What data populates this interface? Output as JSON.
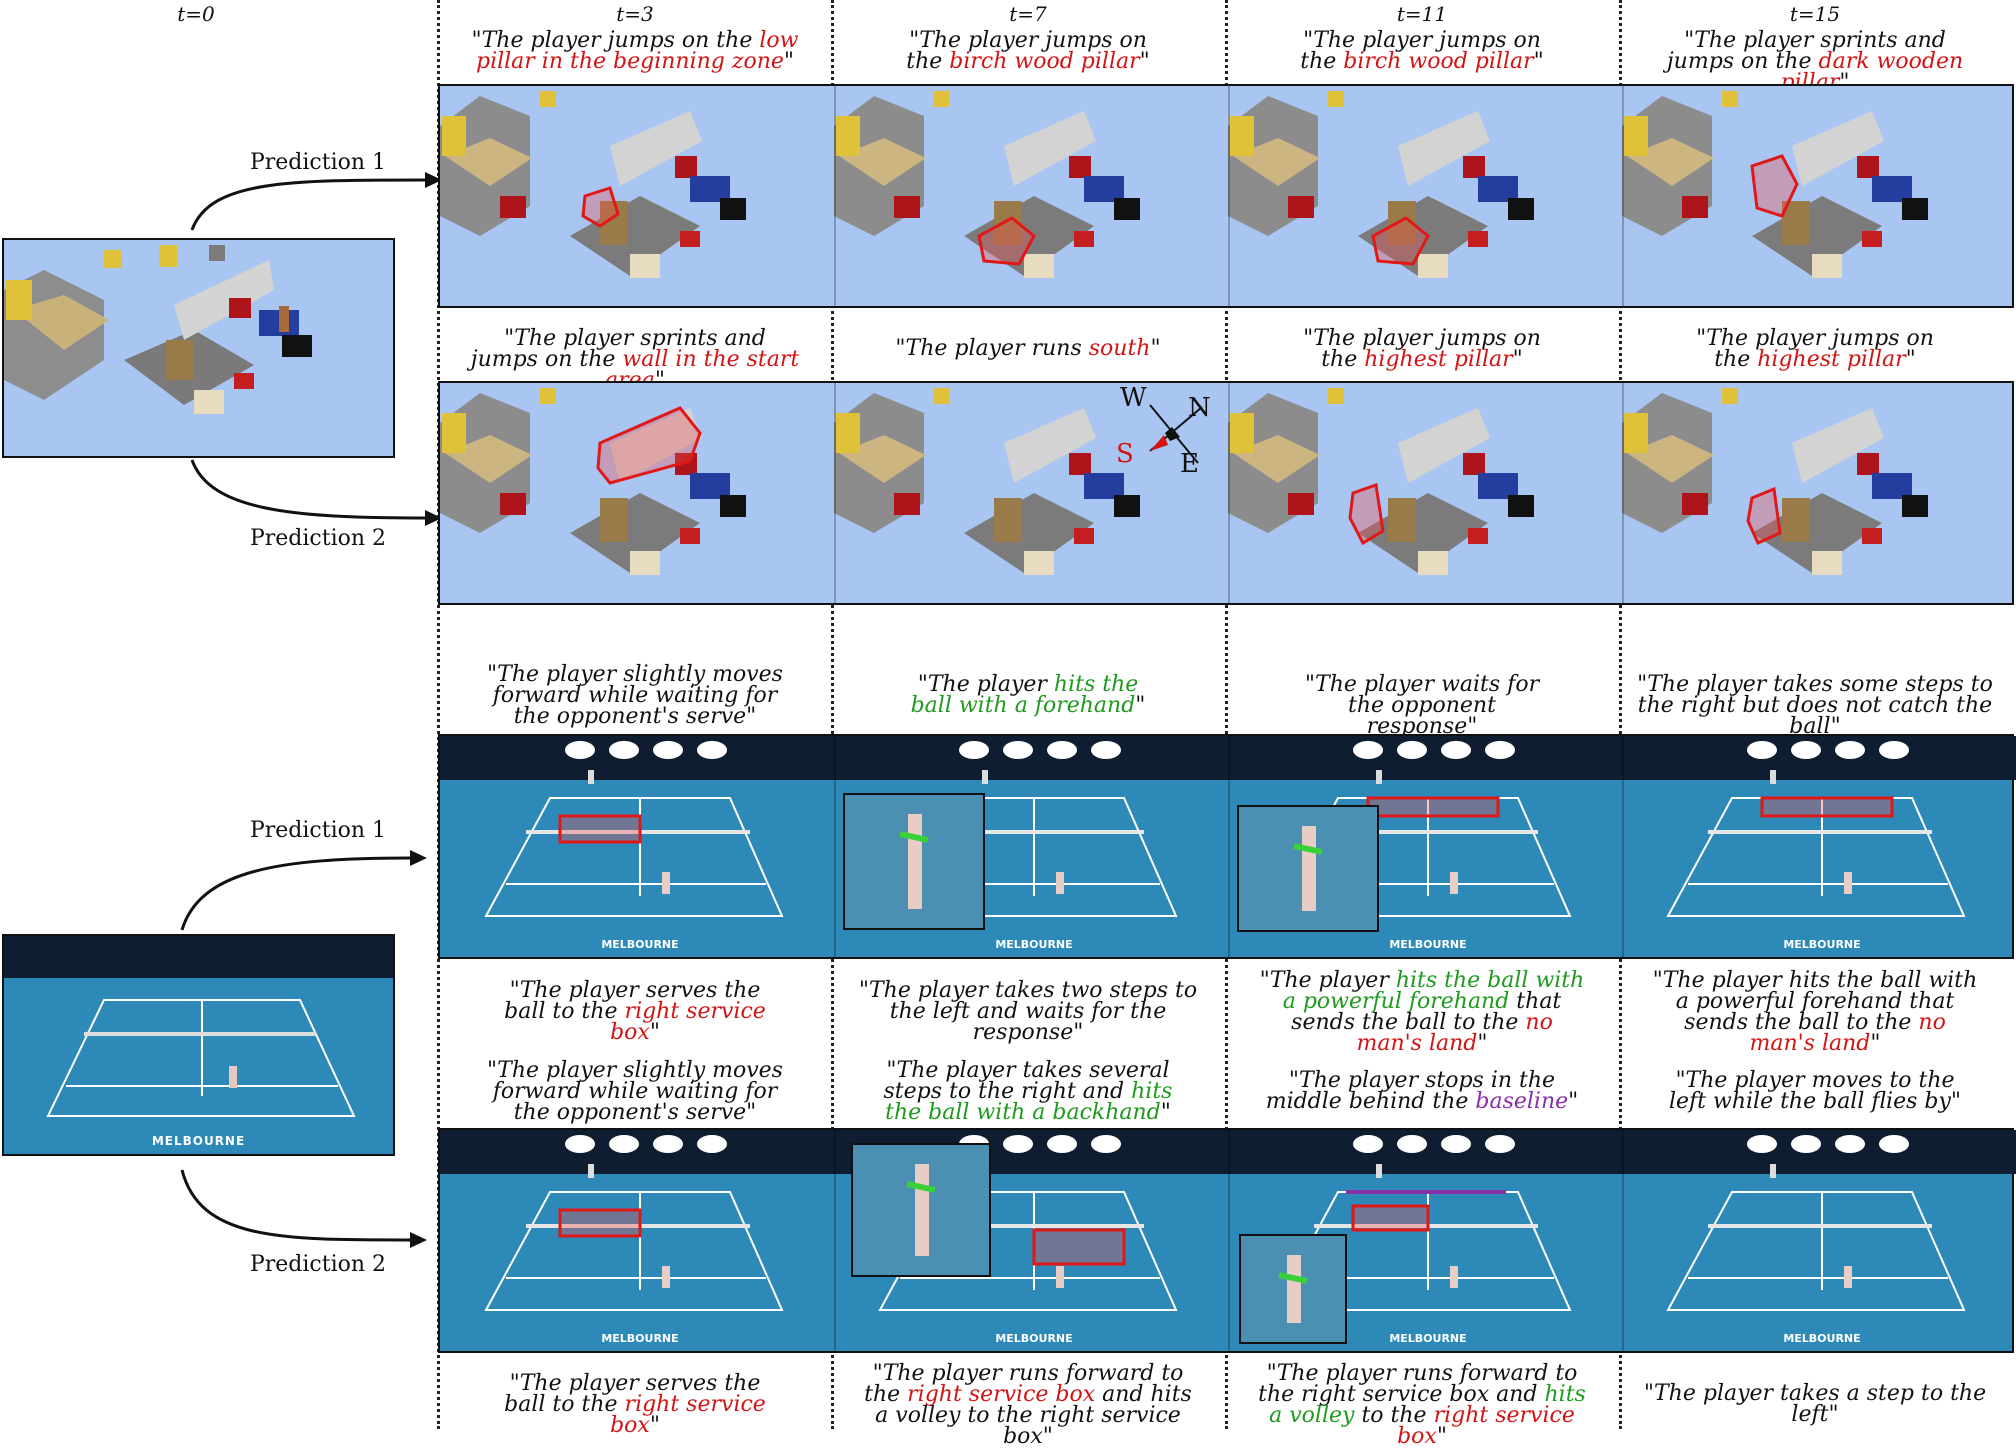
{
  "time_labels": [
    "t=0",
    "t=3",
    "t=7",
    "t=11",
    "t=15"
  ],
  "prediction_labels": {
    "p1": "Prediction 1",
    "p2": "Prediction 2"
  },
  "compass": {
    "w": "W",
    "n": "N",
    "s": "S",
    "e": "E"
  },
  "court_logo": "MELBOURNE",
  "minecraft": {
    "p1_captions": [
      [
        {
          "t": "\"The player jumps on the "
        },
        {
          "t": "low pillar in the beginning zone",
          "c": "red"
        },
        {
          "t": "\""
        }
      ],
      [
        {
          "t": "\"The player jumps on the "
        },
        {
          "t": "birch wood pillar",
          "c": "red"
        },
        {
          "t": "\""
        }
      ],
      [
        {
          "t": "\"The player jumps on the "
        },
        {
          "t": "birch wood pillar",
          "c": "red"
        },
        {
          "t": "\""
        }
      ],
      [
        {
          "t": "\"The player sprints and jumps on the "
        },
        {
          "t": "dark wooden pillar",
          "c": "red"
        },
        {
          "t": "\""
        }
      ]
    ],
    "p2_captions": [
      [
        {
          "t": "\"The player sprints and jumps on the "
        },
        {
          "t": "wall in the start area",
          "c": "red"
        },
        {
          "t": "\""
        }
      ],
      [
        {
          "t": "\"The player runs "
        },
        {
          "t": "south",
          "c": "red"
        },
        {
          "t": "\""
        }
      ],
      [
        {
          "t": "\"The player jumps on the "
        },
        {
          "t": "highest pillar",
          "c": "red"
        },
        {
          "t": "\""
        }
      ],
      [
        {
          "t": "\"The player jumps on the "
        },
        {
          "t": "highest pillar",
          "c": "red"
        },
        {
          "t": "\""
        }
      ]
    ]
  },
  "tennis": {
    "p1_captions_top": [
      [
        {
          "t": "\"The player slightly moves forward while waiting for the opponent's serve\""
        }
      ],
      [
        {
          "t": "\"The player "
        },
        {
          "t": "hits the ball with a forehand",
          "c": "green"
        },
        {
          "t": "\""
        }
      ],
      [
        {
          "t": "\"The player waits for the opponent response\""
        }
      ],
      [
        {
          "t": "\"The player takes some steps to the right but does not catch the ball\""
        }
      ]
    ],
    "p1_captions_bottom": [
      [
        {
          "t": "\"The player serves the ball to the "
        },
        {
          "t": "right service box",
          "c": "red"
        },
        {
          "t": "\""
        }
      ],
      [
        {
          "t": "\"The player takes two steps to the left and waits for the response\""
        }
      ],
      [
        {
          "t": "\"The player "
        },
        {
          "t": "hits the ball with a powerful forehand",
          "c": "green"
        },
        {
          "t": " that sends the ball to the "
        },
        {
          "t": "no man's land",
          "c": "red"
        },
        {
          "t": "\""
        }
      ],
      [
        {
          "t": "\"The player hits the ball with a powerful forehand that sends the ball to the "
        },
        {
          "t": "no man's land",
          "c": "red"
        },
        {
          "t": "\""
        }
      ]
    ],
    "p2_captions_top": [
      [
        {
          "t": "\"The player slightly moves forward while waiting for the opponent's serve\""
        }
      ],
      [
        {
          "t": "\"The player takes several steps to the right and "
        },
        {
          "t": "hits the ball with a backhand",
          "c": "green"
        },
        {
          "t": "\""
        }
      ],
      [
        {
          "t": "\"The player stops in the middle behind the "
        },
        {
          "t": "baseline",
          "c": "purple"
        },
        {
          "t": "\""
        }
      ],
      [
        {
          "t": "\"The player moves to the left while the ball flies by\""
        }
      ]
    ],
    "p2_captions_bottom": [
      [
        {
          "t": "\"The player serves the ball to the "
        },
        {
          "t": "right service box",
          "c": "red"
        },
        {
          "t": "\""
        }
      ],
      [
        {
          "t": "\"The player runs forward to the "
        },
        {
          "t": "right service box",
          "c": "red"
        },
        {
          "t": " and hits a volley to the right service box\""
        }
      ],
      [
        {
          "t": "\"The player runs forward to the right service box and "
        },
        {
          "t": "hits a volley",
          "c": "green"
        },
        {
          "t": " to the "
        },
        {
          "t": "right service box",
          "c": "red"
        },
        {
          "t": "\""
        }
      ],
      [
        {
          "t": "\"The player takes a step to the left\""
        }
      ]
    ]
  },
  "colors": {
    "red": "#d21414",
    "green": "#1f9a1f",
    "purple": "#8a2da8",
    "sky": "#a9c6f2",
    "court": "#2d8ab8"
  }
}
